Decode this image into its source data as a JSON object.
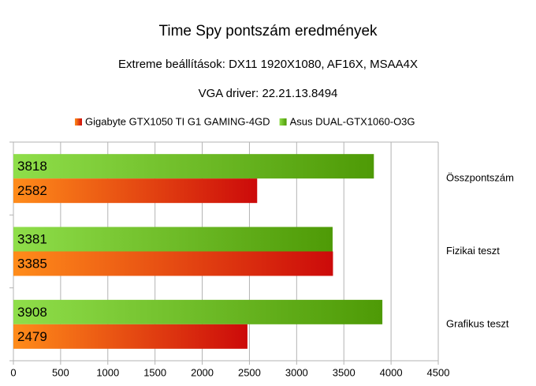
{
  "chart_data": {
    "type": "hbar",
    "title": "Time Spy pontszám eredmények",
    "subtitles": [
      "Extreme beállítások: DX11 1920X1080, AF16X, MSAA4X",
      "VGA driver: 22.21.13.8494"
    ],
    "categories": [
      "Összpontszám",
      "Fizikai teszt",
      "Grafikus teszt"
    ],
    "series": [
      {
        "name": "Gigabyte GTX1050 TI G1 GAMING-4GD",
        "color": "#cc0a0a",
        "values": [
          2582,
          3385,
          2479
        ]
      },
      {
        "name": "Asus DUAL-GTX1060-O3G",
        "color": "#4e9a06",
        "values": [
          3818,
          3381,
          3908
        ]
      }
    ],
    "xlim": [
      0,
      4500
    ],
    "xticks": [
      0,
      500,
      1000,
      1500,
      2000,
      2500,
      3000,
      3500,
      4000,
      4500
    ],
    "grid": true
  }
}
